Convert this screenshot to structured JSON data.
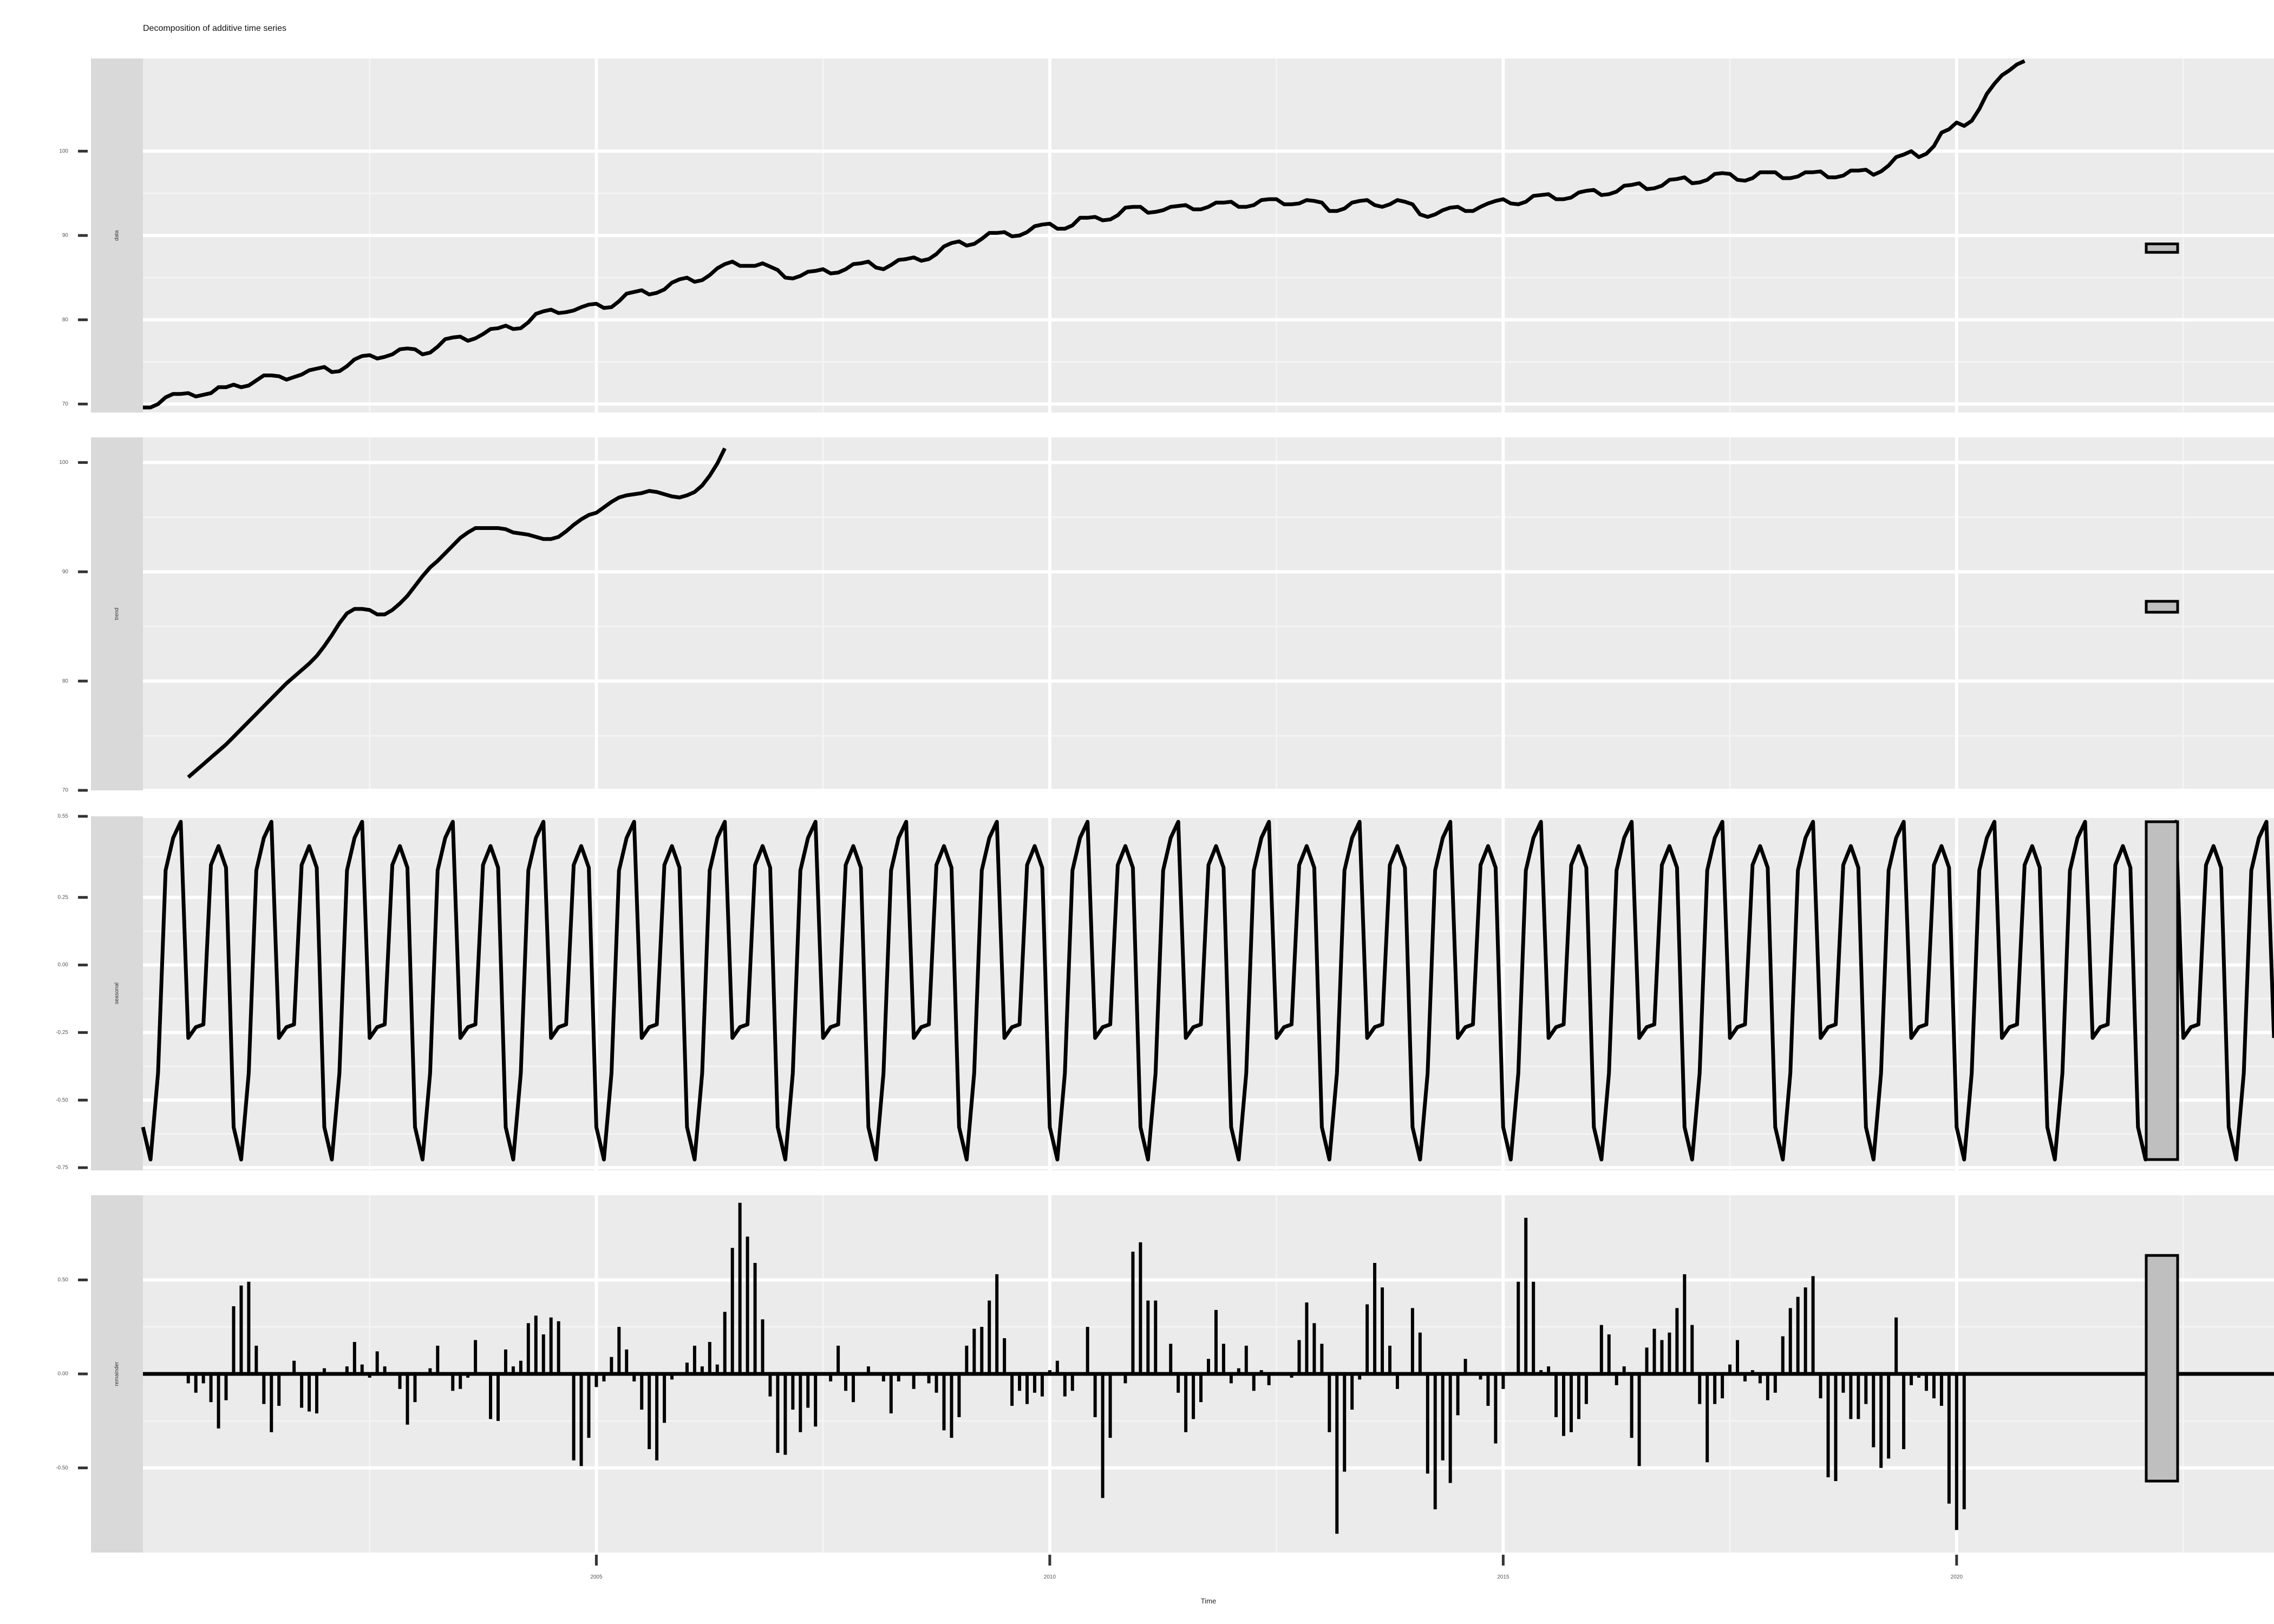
{
  "title": "Decomposition of additive time series",
  "xlabel": "Time",
  "chart_data": {
    "type": "line",
    "title": "Decomposition of additive time series",
    "xlabel": "Time",
    "frequency": 12,
    "x_range": [
      2000.0,
      2023.5
    ],
    "x_ticks": [
      2005,
      2010,
      2015,
      2020
    ],
    "panels": [
      {
        "name": "data",
        "kind": "line",
        "start": 2000.0,
        "ylim": [
          69,
          111
        ],
        "y_ticks": [
          70,
          80,
          90,
          100
        ],
        "values": [
          69.6,
          69.6,
          70.0,
          70.8,
          71.2,
          71.2,
          71.3,
          70.9,
          71.1,
          71.3,
          72.0,
          72.0,
          72.3,
          72.0,
          72.2,
          72.8,
          73.4,
          73.4,
          73.3,
          72.9,
          73.2,
          73.5,
          74.0,
          74.2,
          74.4,
          73.8,
          73.9,
          74.5,
          75.3,
          75.7,
          75.8,
          75.4,
          75.6,
          75.9,
          76.5,
          76.6,
          76.5,
          75.9,
          76.1,
          76.8,
          77.7,
          77.9,
          78.0,
          77.5,
          77.8,
          78.3,
          78.9,
          79.0,
          79.3,
          78.9,
          79.0,
          79.7,
          80.7,
          81.0,
          81.2,
          80.8,
          80.9,
          81.1,
          81.5,
          81.8,
          81.9,
          81.4,
          81.5,
          82.2,
          83.1,
          83.3,
          83.5,
          83.0,
          83.2,
          83.6,
          84.4,
          84.8,
          85.0,
          84.5,
          84.7,
          85.3,
          86.1,
          86.6,
          86.9,
          86.4,
          86.4,
          86.4,
          86.7,
          86.3,
          85.9,
          85.0,
          84.9,
          85.2,
          85.7,
          85.8,
          86.0,
          85.5,
          85.6,
          86.0,
          86.6,
          86.7,
          86.9,
          86.2,
          86.0,
          86.5,
          87.1,
          87.2,
          87.4,
          87.0,
          87.2,
          87.8,
          88.7,
          89.1,
          89.3,
          88.8,
          89.0,
          89.6,
          90.3,
          90.3,
          90.4,
          89.9,
          90.0,
          90.4,
          91.1,
          91.3,
          91.4,
          90.8,
          90.8,
          91.2,
          92.1,
          92.1,
          92.2,
          91.8,
          91.9,
          92.4,
          93.3,
          93.4,
          93.4,
          92.7,
          92.8,
          93.0,
          93.4,
          93.5,
          93.6,
          93.1,
          93.1,
          93.4,
          93.9,
          93.9,
          94.0,
          93.4,
          93.4,
          93.6,
          94.2,
          94.3,
          94.3,
          93.7,
          93.7,
          93.8,
          94.2,
          94.1,
          93.9,
          92.9,
          92.9,
          93.2,
          93.9,
          94.1,
          94.2,
          93.6,
          93.4,
          93.7,
          94.2,
          94.0,
          93.7,
          92.5,
          92.2,
          92.5,
          93.0,
          93.3,
          93.4,
          92.9,
          92.9,
          93.4,
          93.8,
          94.1,
          94.3,
          93.8,
          93.7,
          94.0,
          94.7,
          94.8,
          94.9,
          94.3,
          94.3,
          94.5,
          95.1,
          95.3,
          95.4,
          94.8,
          94.9,
          95.2,
          95.9,
          96.0,
          96.2,
          95.5,
          95.6,
          95.9,
          96.6,
          96.7,
          96.9,
          96.2,
          96.3,
          96.6,
          97.3,
          97.4,
          97.3,
          96.6,
          96.5,
          96.8,
          97.5,
          97.5,
          97.5,
          96.8,
          96.8,
          97.0,
          97.5,
          97.5,
          97.6,
          96.9,
          96.9,
          97.1,
          97.7,
          97.7,
          97.8,
          97.2,
          97.6,
          98.3,
          99.3,
          99.6,
          100.0,
          99.3,
          99.7,
          100.6,
          102.2,
          102.6,
          103.4,
          103.0,
          103.6,
          105.0,
          106.8,
          108.0,
          109.0,
          109.6,
          110.3,
          110.7
        ],
        "bar": [
          88.0,
          89.0
        ]
      },
      {
        "name": "trend",
        "kind": "line",
        "start": 2000.5,
        "ylim": [
          70,
          102.3
        ],
        "y_ticks": [
          70,
          80,
          90,
          100
        ],
        "values": [
          71.2,
          71.8,
          72.4,
          73.0,
          73.6,
          74.2,
          74.9,
          75.6,
          76.3,
          77.0,
          77.7,
          78.4,
          79.1,
          79.8,
          80.4,
          81.0,
          81.6,
          82.3,
          83.2,
          84.2,
          85.3,
          86.2,
          86.6,
          86.6,
          86.5,
          86.1,
          86.1,
          86.5,
          87.1,
          87.8,
          88.7,
          89.6,
          90.4,
          91.0,
          91.7,
          92.4,
          93.1,
          93.6,
          94.0,
          94.0,
          94.0,
          94.0,
          93.9,
          93.6,
          93.5,
          93.4,
          93.2,
          93.0,
          93.0,
          93.2,
          93.7,
          94.3,
          94.8,
          95.2,
          95.4,
          95.9,
          96.4,
          96.8,
          97.0,
          97.1,
          97.2,
          97.4,
          97.3,
          97.1,
          96.9,
          96.8,
          97.0,
          97.3,
          97.9,
          98.8,
          99.9,
          101.3
        ],
        "bar": [
          86.3,
          87.3
        ]
      },
      {
        "name": "seasonal",
        "kind": "line",
        "start": 2000.0,
        "ylim": [
          -0.76,
          0.55
        ],
        "y_ticks": [
          -0.75,
          -0.5,
          -0.25,
          0.0,
          0.25,
          0.55
        ],
        "pattern": [
          -0.6,
          -0.72,
          -0.4,
          0.35,
          0.47,
          0.53,
          -0.27,
          -0.23,
          -0.22,
          0.37,
          0.44,
          0.36
        ],
        "values": [
          -0.6,
          -0.72,
          -0.4
        ],
        "bar": [
          -0.72,
          0.53
        ]
      },
      {
        "name": "remainder",
        "kind": "bar",
        "start": 2000.5,
        "ylim": [
          -0.95,
          0.95
        ],
        "y_ticks": [
          -0.5,
          0.0,
          0.5
        ],
        "values": [
          -0.05,
          -0.1,
          -0.05,
          -0.15,
          -0.29,
          -0.14,
          0.36,
          0.47,
          0.49,
          0.15,
          -0.16,
          -0.31,
          -0.17,
          0.0,
          0.07,
          -0.18,
          -0.2,
          -0.21,
          0.03,
          0.0,
          0.0,
          0.04,
          0.17,
          0.05,
          -0.02,
          0.12,
          0.04,
          0.0,
          -0.08,
          -0.27,
          -0.15,
          0.0,
          0.03,
          0.15,
          0.0,
          -0.09,
          -0.08,
          -0.02,
          0.18,
          0.0,
          -0.24,
          -0.25,
          0.13,
          0.04,
          0.07,
          0.27,
          0.31,
          0.21,
          0.3,
          0.28,
          0.0,
          -0.46,
          -0.49,
          -0.34,
          -0.07,
          -0.04,
          0.09,
          0.25,
          0.13,
          -0.04,
          -0.19,
          -0.4,
          -0.46,
          -0.26,
          -0.03,
          0.0,
          0.06,
          0.15,
          0.04,
          0.17,
          0.05,
          0.33,
          0.67,
          0.91,
          0.73,
          0.59,
          0.29,
          -0.12,
          -0.42,
          -0.43,
          -0.19,
          -0.31,
          -0.18,
          -0.28,
          0.0,
          -0.04,
          0.15,
          -0.09,
          -0.15,
          0.0,
          0.04,
          -0.01,
          -0.04,
          -0.21,
          -0.04,
          0.0,
          -0.08,
          -0.01,
          -0.05,
          -0.1,
          -0.3,
          -0.34,
          -0.23,
          0.15,
          0.24,
          0.25,
          0.39,
          0.53,
          0.19,
          -0.17,
          -0.09,
          -0.16,
          -0.1,
          -0.12,
          0.02,
          0.07,
          -0.12,
          -0.09,
          0.0,
          0.25,
          -0.23,
          -0.66,
          -0.34,
          0.0,
          -0.05,
          0.65,
          0.7,
          0.39,
          0.39,
          0.0,
          0.16,
          -0.1,
          -0.31,
          -0.24,
          -0.15,
          0.08,
          0.34,
          0.16,
          -0.05,
          0.03,
          0.15,
          -0.09,
          0.02,
          -0.06,
          0.01,
          0.0,
          -0.02,
          0.18,
          0.38,
          0.27,
          0.16,
          -0.31,
          -0.85,
          -0.52,
          -0.19,
          -0.03,
          0.37,
          0.59,
          0.46,
          0.15,
          -0.08,
          0.0,
          0.35,
          0.22,
          -0.53,
          -0.72,
          -0.46,
          -0.58,
          -0.22,
          0.08,
          0.0,
          -0.03,
          -0.17,
          -0.37,
          -0.08,
          0.0,
          0.49,
          0.83,
          0.49,
          0.02,
          0.04,
          -0.23,
          -0.33,
          -0.31,
          -0.24,
          -0.16,
          0.0,
          0.26,
          0.21,
          -0.06,
          0.04,
          -0.34,
          -0.49,
          0.14,
          0.24,
          0.18,
          0.22,
          0.35,
          0.53,
          0.26,
          -0.16,
          -0.47,
          -0.16,
          -0.13,
          0.05,
          0.18,
          -0.04,
          0.02,
          -0.05,
          -0.14,
          -0.1,
          0.2,
          0.35,
          0.41,
          0.46,
          0.52,
          -0.13,
          -0.55,
          -0.57,
          -0.1,
          -0.24,
          -0.24,
          -0.16,
          -0.39,
          -0.5,
          -0.45,
          0.3,
          -0.4,
          -0.06,
          -0.02,
          -0.09,
          -0.13,
          -0.17,
          -0.69,
          -0.83,
          -0.72
        ],
        "bar": [
          -0.57,
          0.63
        ]
      }
    ]
  }
}
